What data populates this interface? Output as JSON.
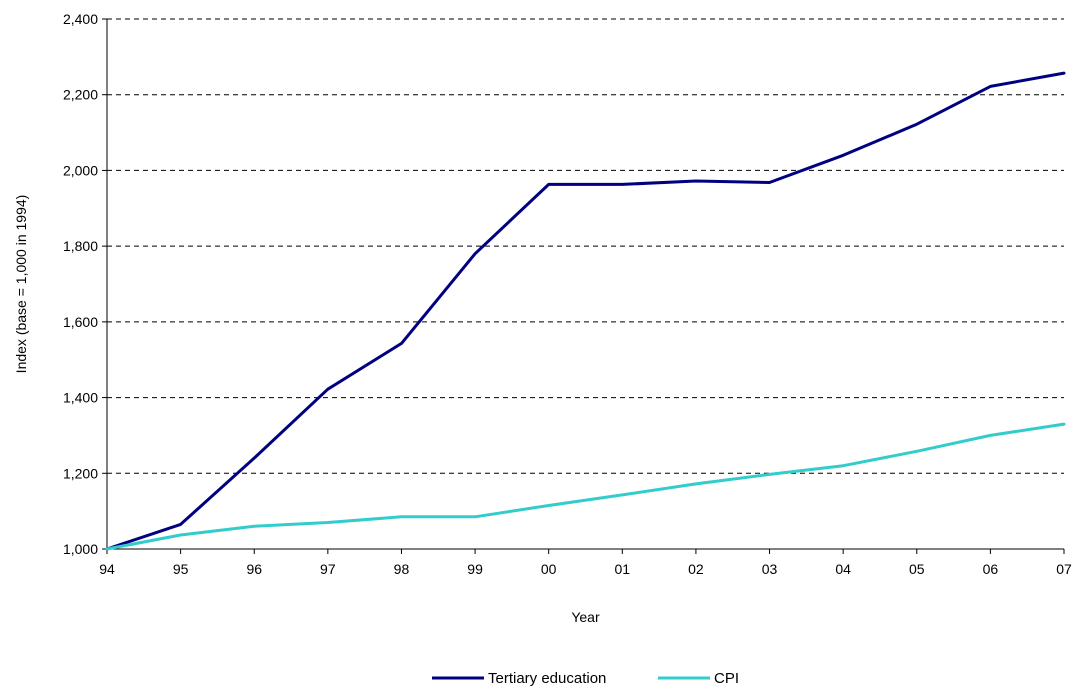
{
  "chart_data": {
    "type": "line",
    "title": "",
    "xlabel": "Year",
    "ylabel": "Index (base = 1,000 in 1994)",
    "categories": [
      "94",
      "95",
      "96",
      "97",
      "98",
      "99",
      "00",
      "01",
      "02",
      "03",
      "04",
      "05",
      "06",
      "07"
    ],
    "ylim": [
      1000,
      2400
    ],
    "yticks": [
      1000,
      1200,
      1400,
      1600,
      1800,
      2000,
      2200,
      2400
    ],
    "ytick_labels": [
      "1,000",
      "1,200",
      "1,400",
      "1,600",
      "1,800",
      "2,000",
      "2,200",
      "2,400"
    ],
    "grid": "horizontal dashed",
    "legend_position": "bottom-center",
    "series": [
      {
        "name": "Tertiary education",
        "color": "#000080",
        "values": [
          1000,
          1065,
          1240,
          1422,
          1543,
          1780,
          1963,
          1963,
          1972,
          1968,
          2040,
          2122,
          2222,
          2257
        ]
      },
      {
        "name": "CPI",
        "color": "#33CCCC",
        "values": [
          1000,
          1037,
          1060,
          1070,
          1085,
          1085,
          1115,
          1143,
          1172,
          1197,
          1220,
          1258,
          1300,
          1330
        ]
      }
    ]
  }
}
